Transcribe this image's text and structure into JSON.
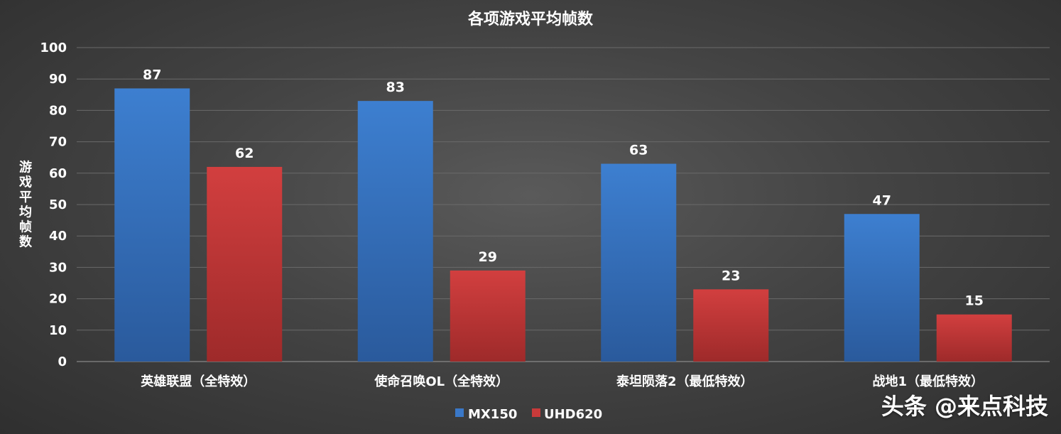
{
  "chart_data": {
    "type": "bar",
    "title": "各项游戏平均帧数",
    "ylabel": "游戏平均帧数",
    "xlabel": "",
    "ylim": [
      0,
      100
    ],
    "yticks": [
      0,
      10,
      20,
      30,
      40,
      50,
      60,
      70,
      80,
      90,
      100
    ],
    "categories": [
      "英雄联盟（全特效）",
      "使命召唤OL（全特效）",
      "泰坦陨落2（最低特效）",
      "战地1（最低特效）"
    ],
    "series": [
      {
        "name": "MX150",
        "values": [
          87,
          83,
          63,
          47
        ],
        "color": "#3a78c8"
      },
      {
        "name": "UHD620",
        "values": [
          62,
          29,
          23,
          15
        ],
        "color": "#c83a3a"
      }
    ],
    "grid": true,
    "legend": "bottom-center",
    "data_labels": true
  },
  "watermark": "头条 @来点科技"
}
